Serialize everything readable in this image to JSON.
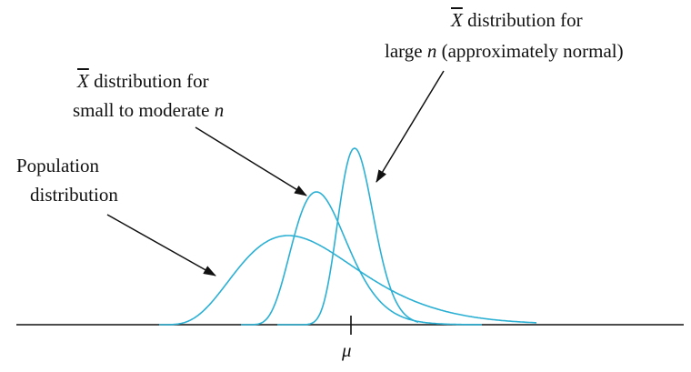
{
  "labels": {
    "large_n_line1_symbol": "X",
    "large_n_line1_text": " distribution for",
    "large_n_line2_pre": "large ",
    "large_n_line2_var": "n",
    "large_n_line2_post": " (approximately normal)",
    "small_n_line1_symbol": "X",
    "small_n_line1_text": " distribution for",
    "small_n_line2_pre": "small to moderate ",
    "small_n_line2_var": "n",
    "population_line1": "Population",
    "population_line2": "distribution",
    "mean_symbol": "μ"
  },
  "colors": {
    "curve": "#2bb0d4",
    "axis": "#111111",
    "arrow": "#111111"
  }
}
